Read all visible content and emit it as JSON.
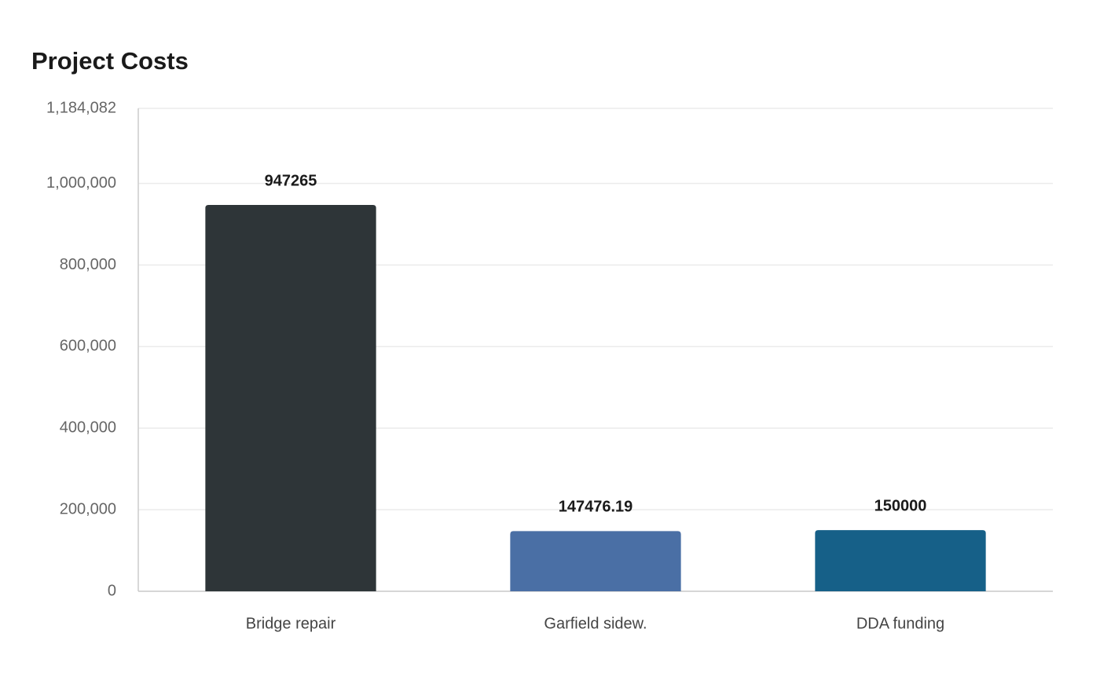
{
  "chart_data": {
    "type": "bar",
    "title": "Project Costs",
    "categories": [
      "Bridge repair",
      "Garfield sidew.",
      "DDA funding"
    ],
    "values": [
      947265,
      147476.19,
      150000
    ],
    "colors": [
      "#2e3538",
      "#4a6fa5",
      "#166088"
    ],
    "ylim": [
      0,
      1184082
    ],
    "yticks": [
      0,
      {
        "value": 200000,
        "label": "200,000"
      },
      {
        "value": 400000,
        "label": "400,000"
      },
      {
        "value": 600000,
        "label": "600,000"
      },
      {
        "value": 800000,
        "label": "800,000"
      },
      {
        "value": 1000000,
        "label": "1,000,000"
      },
      {
        "value": 1184082,
        "label": "1,184,082"
      }
    ],
    "grid": true
  }
}
